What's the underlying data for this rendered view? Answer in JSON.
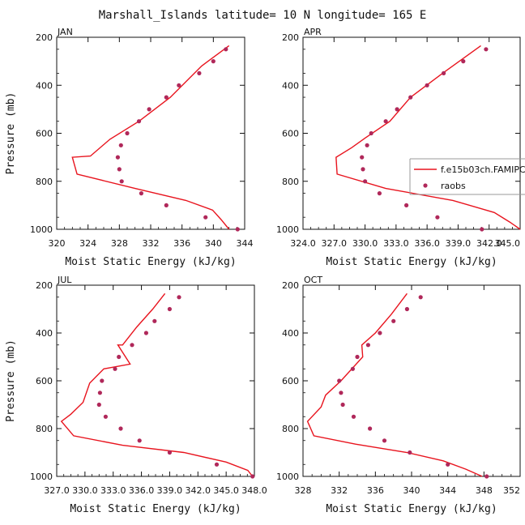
{
  "title": "Marshall_Islands  latitude= 10 N longitude= 165 E",
  "colors": {
    "model": "#e8141e",
    "obs": "#b0285a",
    "axis": "#111111",
    "legend_border": "#999999"
  },
  "chart_data": [
    {
      "type": "line",
      "panel_label": "JAN",
      "xlabel": "Moist Static Energy (kJ/kg)",
      "ylabel": "Pressure (mb)",
      "xlim": [
        320,
        344
      ],
      "ylim": [
        1000,
        200
      ],
      "x_ticks": [
        320,
        324,
        328,
        332,
        336,
        340,
        344
      ],
      "x_tick_labels": [
        "320",
        "324",
        "328",
        "332",
        "336",
        "340",
        "344"
      ],
      "y_ticks": [
        200,
        400,
        600,
        800,
        1000
      ],
      "y_tick_labels": [
        "200",
        "400",
        "600",
        "800",
        "1000"
      ],
      "series": [
        {
          "kind": "line",
          "x": [
            342.0,
            338.5,
            334.5,
            330.5,
            326.8,
            324.3,
            322.0,
            322.6,
            330.0,
            336.5,
            339.9,
            341.0,
            342.0
          ],
          "y": [
            235,
            320,
            450,
            550,
            625,
            695,
            700,
            770,
            830,
            880,
            920,
            960,
            1000
          ]
        },
        {
          "kind": "points",
          "x": [
            341.6,
            340.0,
            338.2,
            335.6,
            334.0,
            331.8,
            330.5,
            329.0,
            328.2,
            327.8,
            328.0,
            328.3,
            330.8,
            334.0,
            339.0,
            343.1
          ],
          "y": [
            250,
            300,
            350,
            400,
            450,
            500,
            550,
            600,
            650,
            700,
            750,
            800,
            850,
            900,
            950,
            1000
          ]
        }
      ]
    },
    {
      "type": "line",
      "panel_label": "APR",
      "xlabel": "Moist Static Energy (kJ/kg)",
      "ylabel": "",
      "xlim": [
        324.0,
        345.0
      ],
      "ylim": [
        1000,
        200
      ],
      "x_ticks": [
        324.0,
        327.0,
        330.0,
        333.0,
        336.0,
        339.0,
        342.0,
        345.0
      ],
      "x_tick_labels": [
        "324.0",
        "327.0",
        "330.0",
        "333.0",
        "336.0",
        "339.0",
        "342.0",
        "345.0"
      ],
      "y_ticks": [
        200,
        400,
        600,
        800,
        1000
      ],
      "y_tick_labels": [
        "200",
        "400",
        "600",
        "800",
        "1000"
      ],
      "legend": {
        "position": "right",
        "entries": [
          "f.e15b03ch.FAMIPC5",
          "raobs"
        ]
      },
      "series": [
        {
          "name": "f.e15b03ch.FAMIPC5",
          "kind": "line",
          "x": [
            341.2,
            337.5,
            334.4,
            332.4,
            330.0,
            328.7,
            327.2,
            327.3,
            332.0,
            338.5,
            342.5,
            344.0,
            345.0
          ],
          "y": [
            235,
            350,
            450,
            550,
            620,
            660,
            700,
            770,
            830,
            880,
            930,
            970,
            1000
          ]
        },
        {
          "name": "raobs",
          "kind": "points",
          "x": [
            341.7,
            339.5,
            337.6,
            336.0,
            334.4,
            333.1,
            332.0,
            330.6,
            330.2,
            329.7,
            329.8,
            330.0,
            331.4,
            334.0,
            337.0,
            341.3
          ],
          "y": [
            250,
            300,
            350,
            400,
            450,
            500,
            550,
            600,
            650,
            700,
            750,
            800,
            850,
            900,
            950,
            1000
          ]
        }
      ]
    },
    {
      "type": "line",
      "panel_label": "JUL",
      "xlabel": "Moist Static Energy (kJ/kg)",
      "ylabel": "Pressure (mb)",
      "xlim": [
        327.0,
        348.0
      ],
      "ylim": [
        1000,
        200
      ],
      "x_ticks": [
        327.0,
        330.0,
        333.0,
        336.0,
        339.0,
        342.0,
        345.0,
        348.0
      ],
      "x_tick_labels": [
        "327.0",
        "330.0",
        "333.0",
        "336.0",
        "339.0",
        "342.0",
        "345.0",
        "348.0"
      ],
      "y_ticks": [
        200,
        400,
        600,
        800,
        1000
      ],
      "y_tick_labels": [
        "200",
        "400",
        "600",
        "800",
        "1000"
      ],
      "series": [
        {
          "kind": "line",
          "x": [
            338.5,
            337.2,
            335.5,
            334.0,
            333.5,
            334.8,
            332.0,
            330.5,
            329.8,
            328.5,
            327.5,
            328.8,
            334.0,
            340.5,
            345.0,
            347.3,
            347.8
          ],
          "y": [
            235,
            300,
            375,
            450,
            450,
            530,
            550,
            610,
            690,
            740,
            770,
            830,
            870,
            900,
            940,
            975,
            1000
          ]
        },
        {
          "kind": "points",
          "x": [
            340.0,
            339.0,
            337.4,
            336.5,
            335.0,
            333.6,
            333.2,
            331.8,
            331.6,
            331.5,
            332.2,
            333.8,
            335.8,
            339.0,
            344.0,
            347.8
          ],
          "y": [
            250,
            300,
            350,
            400,
            450,
            500,
            550,
            600,
            650,
            700,
            750,
            800,
            850,
            900,
            950,
            1000
          ]
        }
      ]
    },
    {
      "type": "line",
      "panel_label": "OCT",
      "xlabel": "Moist Static Energy (kJ/kg)",
      "ylabel": "",
      "xlim": [
        328,
        352
      ],
      "ylim": [
        1000,
        200
      ],
      "x_ticks": [
        328,
        332,
        336,
        340,
        344,
        348,
        352
      ],
      "x_tick_labels": [
        "328",
        "332",
        "336",
        "340",
        "344",
        "348",
        "352"
      ],
      "y_ticks": [
        200,
        400,
        600,
        800,
        1000
      ],
      "y_tick_labels": [
        "200",
        "400",
        "600",
        "800",
        "1000"
      ],
      "series": [
        {
          "kind": "line",
          "x": [
            339.5,
            337.8,
            336.0,
            334.5,
            334.6,
            332.2,
            330.5,
            330.0,
            328.5,
            329.2,
            333.8,
            339.5,
            343.5,
            346.0,
            347.8
          ],
          "y": [
            235,
            320,
            400,
            450,
            500,
            600,
            660,
            710,
            770,
            830,
            865,
            900,
            935,
            970,
            1000
          ]
        },
        {
          "kind": "points",
          "x": [
            341.0,
            339.5,
            338.0,
            336.5,
            335.2,
            334.0,
            333.5,
            332.0,
            332.2,
            332.4,
            333.6,
            335.4,
            337.0,
            339.8,
            344.0,
            348.3
          ],
          "y": [
            250,
            300,
            350,
            400,
            450,
            500,
            550,
            600,
            650,
            700,
            750,
            800,
            850,
            900,
            950,
            1000
          ]
        }
      ]
    }
  ]
}
